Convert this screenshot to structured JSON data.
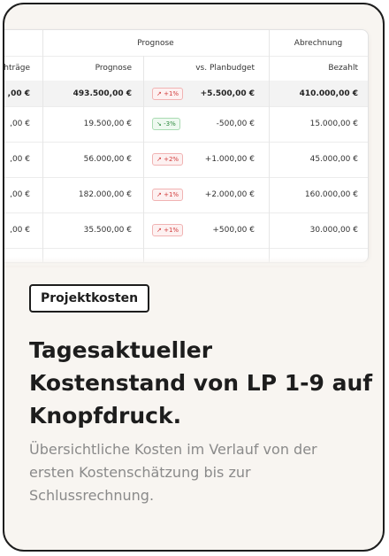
{
  "table": {
    "group_headers": {
      "prognose": "Prognose",
      "abrechnung": "Abrechnung"
    },
    "column_headers": {
      "first": "hträge",
      "prognose": "Prognose",
      "vs_planbudget": "vs. Planbudget",
      "bezahlt": "Bezahlt"
    },
    "total_row": {
      "first": ",00 €",
      "prognose": "493.500,00 €",
      "badge": "↗ +1%",
      "badge_trend": "up",
      "vs_planbudget": "+5.500,00 €",
      "bezahlt": "410.000,00 €"
    },
    "rows": [
      {
        "first": ",00 €",
        "prognose": "19.500,00 €",
        "badge": "↘ -3%",
        "badge_trend": "down",
        "vs_planbudget": "-500,00 €",
        "bezahlt": "15.000,00 €"
      },
      {
        "first": ",00 €",
        "prognose": "56.000,00 €",
        "badge": "↗ +2%",
        "badge_trend": "up",
        "vs_planbudget": "+1.000,00 €",
        "bezahlt": "45.000,00 €"
      },
      {
        "first": ",00 €",
        "prognose": "182.000,00 €",
        "badge": "↗ +1%",
        "badge_trend": "up",
        "vs_planbudget": "+2.000,00 €",
        "bezahlt": "160.000,00 €"
      },
      {
        "first": ",00 €",
        "prognose": "35.500,00 €",
        "badge": "↗ +1%",
        "badge_trend": "up",
        "vs_planbudget": "+500,00 €",
        "bezahlt": "30.000,00 €"
      }
    ],
    "badge_colors": {
      "up": "#d13b3b",
      "down": "#2d8a3e"
    }
  },
  "card": {
    "label": "Projektkosten",
    "headline": "Tagesaktueller Kostenstand von LP 1-9 auf Knopfdruck.",
    "description": "Übersichtliche Kosten im Verlauf von der ersten Kostenschätzung bis zur Schlussrechnung."
  },
  "colors": {
    "card_background": "#f8f5f1",
    "border": "#1d1d1d",
    "description_text": "#8a8a8a"
  }
}
